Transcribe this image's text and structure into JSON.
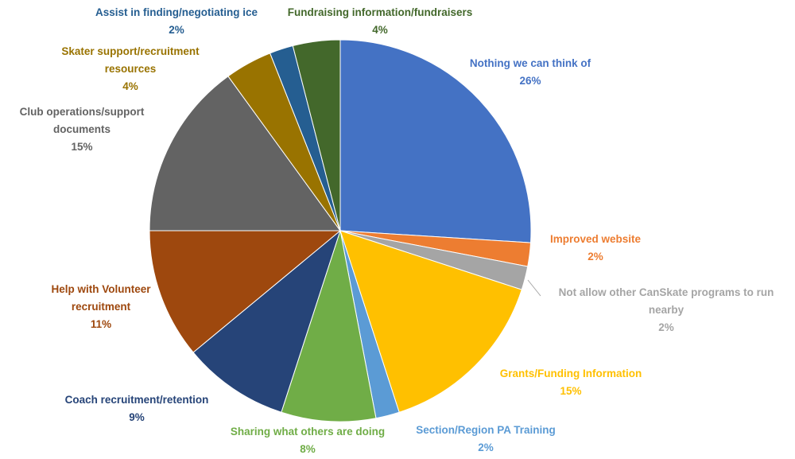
{
  "chart_data": {
    "type": "pie",
    "slices": [
      {
        "label": [
          "Nothing we can think of"
        ],
        "pct_label": "26%",
        "value": 26,
        "color": "#4472c4"
      },
      {
        "label": [
          "Improved website"
        ],
        "pct_label": "2%",
        "value": 2,
        "color": "#ed7d31"
      },
      {
        "label": [
          "Not allow other CanSkate programs to run",
          "nearby"
        ],
        "pct_label": "2%",
        "value": 2,
        "color": "#a5a5a5"
      },
      {
        "label": [
          "Grants/Funding Information"
        ],
        "pct_label": "15%",
        "value": 15,
        "color": "#ffc000"
      },
      {
        "label": [
          "Section/Region PA Training"
        ],
        "pct_label": "2%",
        "value": 2,
        "color": "#5b9bd5"
      },
      {
        "label": [
          "Sharing what others are doing"
        ],
        "pct_label": "8%",
        "value": 8,
        "color": "#70ad47"
      },
      {
        "label": [
          "Coach recruitment/retention"
        ],
        "pct_label": "9%",
        "value": 9,
        "color": "#264478"
      },
      {
        "label": [
          "Help with Volunteer",
          "recruitment"
        ],
        "pct_label": "11%",
        "value": 11,
        "color": "#9e480e"
      },
      {
        "label": [
          "Club operations/support",
          "documents"
        ],
        "pct_label": "15%",
        "value": 15,
        "color": "#636363"
      },
      {
        "label": [
          "Skater support/recruitment",
          "resources"
        ],
        "pct_label": "4%",
        "value": 4,
        "color": "#997300"
      },
      {
        "label": [
          "Assist in finding/negotiating ice"
        ],
        "pct_label": "2%",
        "value": 2,
        "color": "#255e91"
      },
      {
        "label": [
          "Fundraising information/fundraisers"
        ],
        "pct_label": "4%",
        "value": 4,
        "color": "#43682b"
      }
    ]
  }
}
